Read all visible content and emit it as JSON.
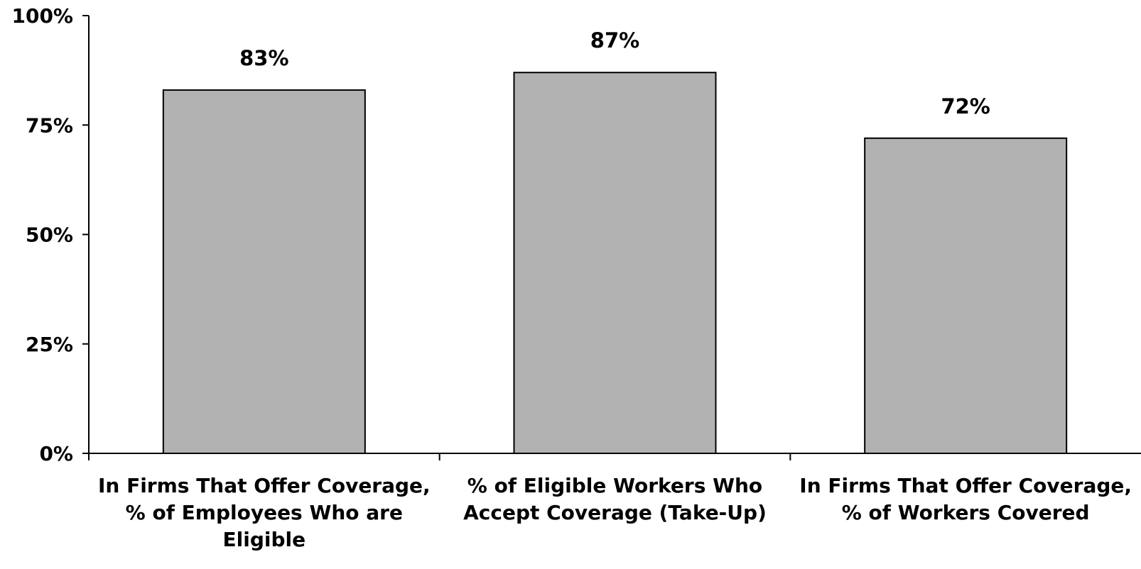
{
  "chart_data": {
    "type": "bar",
    "categories": [
      "In Firms That Offer Coverage, % of Employees Who are Eligible",
      "% of Eligible Workers Who Accept Coverage (Take-Up)",
      "In Firms That Offer Coverage, % of Workers Covered"
    ],
    "values": [
      83,
      87,
      72
    ],
    "data_labels": [
      "83%",
      "87%",
      "72%"
    ],
    "ylim": [
      0,
      100
    ],
    "yticks": [
      0,
      25,
      50,
      75,
      100
    ],
    "ytick_labels": [
      "0%",
      "25%",
      "50%",
      "75%",
      "100%"
    ],
    "bar_color": "#b2b2b2",
    "bar_edge_color": "#000000",
    "grid": false,
    "legend": false
  }
}
